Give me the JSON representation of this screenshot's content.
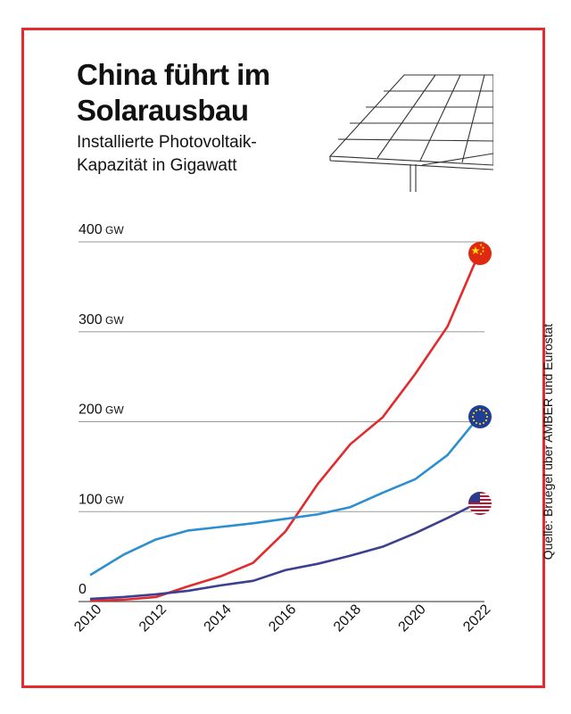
{
  "header": {
    "title": "China führt im Solarausbau",
    "subtitle": "Installierte Photovoltaik-Kapazität in Gigawatt"
  },
  "source": "Quelle: Bruegel über AMBER und Eurostat",
  "chart_data": {
    "type": "line",
    "title": "China führt im Solarausbau",
    "subtitle": "Installierte Photovoltaik-Kapazität in Gigawatt",
    "x": [
      2010,
      2011,
      2012,
      2013,
      2014,
      2015,
      2016,
      2017,
      2018,
      2019,
      2020,
      2021,
      2022
    ],
    "ylim": [
      0,
      400
    ],
    "y_ticks": [
      {
        "value": 0,
        "num": "0",
        "unit": ""
      },
      {
        "value": 100,
        "num": "100",
        "unit": "GW"
      },
      {
        "value": 200,
        "num": "200",
        "unit": "GW"
      },
      {
        "value": 300,
        "num": "300",
        "unit": "GW"
      },
      {
        "value": 400,
        "num": "400",
        "unit": "GW"
      }
    ],
    "x_ticks": [
      "2010",
      "2012",
      "2014",
      "2016",
      "2018",
      "2020",
      "2022"
    ],
    "grid": true,
    "series": [
      {
        "id": "china",
        "values": [
          1,
          2,
          5,
          17,
          28,
          43,
          78,
          131,
          175,
          205,
          253,
          306,
          390
        ],
        "color": "#e32b2e",
        "icon": "china-flag-icon"
      },
      {
        "id": "eu",
        "values": [
          30,
          52,
          69,
          79,
          83,
          87,
          92,
          97,
          105,
          121,
          136,
          163,
          207
        ],
        "color": "#2b8fd0",
        "icon": "eu-flag-icon"
      },
      {
        "id": "usa",
        "values": [
          3,
          5,
          8,
          12,
          18,
          23,
          35,
          42,
          51,
          61,
          76,
          93,
          111
        ],
        "color": "#3d3f8f",
        "icon": "usa-flag-icon"
      }
    ]
  }
}
